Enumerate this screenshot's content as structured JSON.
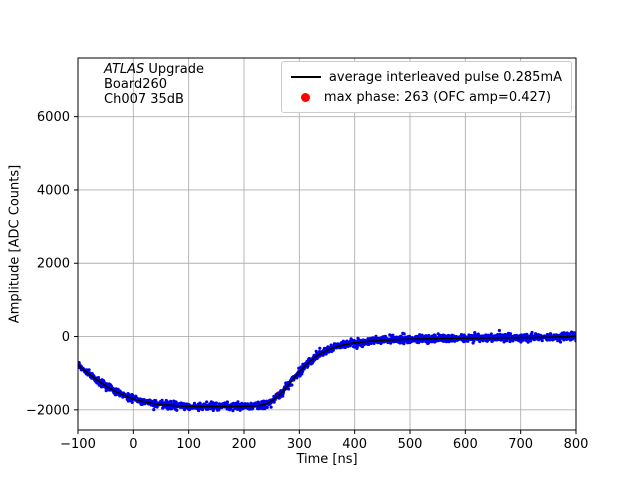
{
  "figure": {
    "background_color": "#ffffff",
    "grid_color": "#b0b0b0",
    "frame_color": "#000000"
  },
  "chart_data": {
    "type": "scatter",
    "title": "",
    "xlabel": "Time [ns]",
    "ylabel": "Amplitude [ADC Counts]",
    "xlim": [
      -100,
      800
    ],
    "ylim": [
      -2550,
      7600
    ],
    "grid": true,
    "legend_position": "upper right",
    "xticks": [
      -100,
      0,
      100,
      200,
      300,
      400,
      500,
      600,
      700,
      800
    ],
    "xtick_labels": [
      "−100",
      "0",
      "100",
      "200",
      "300",
      "400",
      "500",
      "600",
      "700",
      "800"
    ],
    "yticks": [
      -2000,
      0,
      2000,
      4000,
      6000
    ],
    "ytick_labels": [
      "−2000",
      "0",
      "2000",
      "4000",
      "6000"
    ],
    "annotation": {
      "title_italic": "ATLAS",
      "title_rest": " Upgrade",
      "board": "Board260",
      "channel": "Ch007 35dB"
    },
    "legend": [
      {
        "marker": "line",
        "color": "#000000",
        "label": "average interleaved pulse 0.285mA"
      },
      {
        "marker": "dot",
        "color": "#ff0000",
        "label": "max phase: 263 (OFC amp=0.427)"
      }
    ],
    "series": [
      {
        "name": "interleaved samples",
        "type": "scatter",
        "color": "#0000ee",
        "marker_radius": 1.6,
        "sample_step_ns": 0.5,
        "noise_sigma": 52,
        "follows": "average interleaved pulse"
      },
      {
        "name": "average interleaved pulse",
        "type": "line",
        "color": "#000000",
        "line_width": 1.6,
        "points": [
          [
            -100,
            -780
          ],
          [
            -90,
            -905
          ],
          [
            -80,
            -1025
          ],
          [
            -70,
            -1140
          ],
          [
            -60,
            -1245
          ],
          [
            -50,
            -1345
          ],
          [
            -40,
            -1435
          ],
          [
            -30,
            -1515
          ],
          [
            -20,
            -1585
          ],
          [
            -10,
            -1645
          ],
          [
            0,
            -1700
          ],
          [
            10,
            -1745
          ],
          [
            20,
            -1782
          ],
          [
            30,
            -1812
          ],
          [
            40,
            -1836
          ],
          [
            50,
            -1856
          ],
          [
            60,
            -1870
          ],
          [
            70,
            -1881
          ],
          [
            80,
            -1889
          ],
          [
            90,
            -1895
          ],
          [
            100,
            -1900
          ],
          [
            120,
            -1906
          ],
          [
            140,
            -1910
          ],
          [
            160,
            -1910
          ],
          [
            180,
            -1908
          ],
          [
            200,
            -1904
          ],
          [
            210,
            -1900
          ],
          [
            220,
            -1892
          ],
          [
            230,
            -1876
          ],
          [
            240,
            -1838
          ],
          [
            250,
            -1762
          ],
          [
            260,
            -1648
          ],
          [
            270,
            -1500
          ],
          [
            280,
            -1325
          ],
          [
            290,
            -1140
          ],
          [
            300,
            -960
          ],
          [
            310,
            -800
          ],
          [
            320,
            -660
          ],
          [
            330,
            -545
          ],
          [
            340,
            -452
          ],
          [
            350,
            -376
          ],
          [
            360,
            -315
          ],
          [
            370,
            -267
          ],
          [
            380,
            -229
          ],
          [
            390,
            -199
          ],
          [
            400,
            -175
          ],
          [
            420,
            -140
          ],
          [
            440,
            -114
          ],
          [
            460,
            -96
          ],
          [
            480,
            -83
          ],
          [
            500,
            -73
          ],
          [
            520,
            -65
          ],
          [
            540,
            -59
          ],
          [
            560,
            -54
          ],
          [
            580,
            -49
          ],
          [
            600,
            -45
          ],
          [
            620,
            -41
          ],
          [
            640,
            -38
          ],
          [
            660,
            -35
          ],
          [
            680,
            -32
          ],
          [
            700,
            -29
          ],
          [
            720,
            -26
          ],
          [
            740,
            -22
          ],
          [
            760,
            -15
          ],
          [
            780,
            -3
          ],
          [
            800,
            18
          ]
        ]
      },
      {
        "name": "max phase",
        "type": "point",
        "color": "#ff0000",
        "x": 263,
        "marker_radius": 4,
        "note": "hidden beneath sample band"
      }
    ]
  }
}
